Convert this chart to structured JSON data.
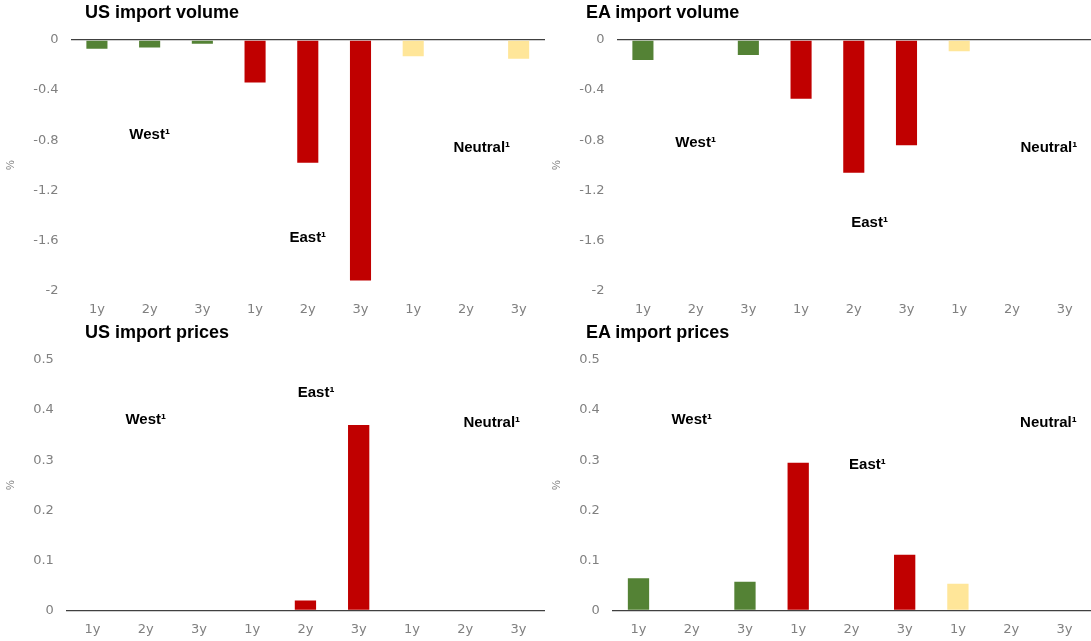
{
  "chart_data": [
    {
      "type": "bar",
      "title": "US import volume",
      "ylabel": "%",
      "categories": [
        "1y",
        "2y",
        "3y",
        "1y",
        "2y",
        "3y",
        "1y",
        "2y",
        "3y"
      ],
      "values": [
        -0.07,
        -0.06,
        -0.03,
        -0.34,
        -0.98,
        -1.92,
        -0.13,
        0,
        -0.15
      ],
      "colors": [
        "#548235",
        "#548235",
        "#548235",
        "#c00000",
        "#c00000",
        "#c00000",
        "#ffe699",
        "#ffe699",
        "#ffe699"
      ],
      "ylim": [
        -2,
        0
      ],
      "yticks": [
        -2,
        -1.6,
        -1.2,
        -0.8,
        -0.4,
        0
      ],
      "annotations": [
        "West¹",
        "East¹",
        "Neutral¹"
      ]
    },
    {
      "type": "bar",
      "title": "EA import volume",
      "ylabel": "%",
      "categories": [
        "1y",
        "2y",
        "3y",
        "1y",
        "2y",
        "3y",
        "1y",
        "2y",
        "3y"
      ],
      "values": [
        -0.16,
        null,
        -0.12,
        -0.47,
        -1.06,
        -0.84,
        -0.09,
        null,
        null
      ],
      "colors": [
        "#548235",
        "#548235",
        "#548235",
        "#c00000",
        "#c00000",
        "#c00000",
        "#ffe699",
        "#ffe699",
        "#ffe699"
      ],
      "ylim": [
        -2,
        0
      ],
      "yticks": [
        -2,
        -1.6,
        -1.2,
        -0.8,
        -0.4,
        0
      ],
      "annotations": [
        "West¹",
        "East¹",
        "Neutral¹"
      ]
    },
    {
      "type": "bar",
      "title": "US import prices",
      "ylabel": "%",
      "categories": [
        "1y",
        "2y",
        "3y",
        "1y",
        "2y",
        "3y",
        "1y",
        "2y",
        "3y"
      ],
      "values": [
        null,
        null,
        null,
        null,
        0.02,
        0.37,
        null,
        null,
        null
      ],
      "colors": [
        "#548235",
        "#548235",
        "#548235",
        "#c00000",
        "#c00000",
        "#c00000",
        "#ffe699",
        "#ffe699",
        "#ffe699"
      ],
      "ylim": [
        0,
        0.5
      ],
      "yticks": [
        0,
        0.1,
        0.2,
        0.3,
        0.4,
        0.5
      ],
      "annotations": [
        "West¹",
        "East¹",
        "Neutral¹"
      ]
    },
    {
      "type": "bar",
      "title": "EA import prices",
      "ylabel": "%",
      "categories": [
        "1y",
        "2y",
        "3y",
        "1y",
        "2y",
        "3y",
        "1y",
        "2y",
        "3y"
      ],
      "values": [
        0.064,
        null,
        0.057,
        0.295,
        null,
        0.111,
        0.053,
        null,
        null
      ],
      "colors": [
        "#548235",
        "#548235",
        "#548235",
        "#c00000",
        "#c00000",
        "#c00000",
        "#ffe699",
        "#ffe699",
        "#ffe699"
      ],
      "ylim": [
        0,
        0.5
      ],
      "yticks": [
        0,
        0.1,
        0.2,
        0.3,
        0.4,
        0.5
      ],
      "annotations": [
        "West¹",
        "East¹",
        "Neutral¹"
      ]
    }
  ]
}
